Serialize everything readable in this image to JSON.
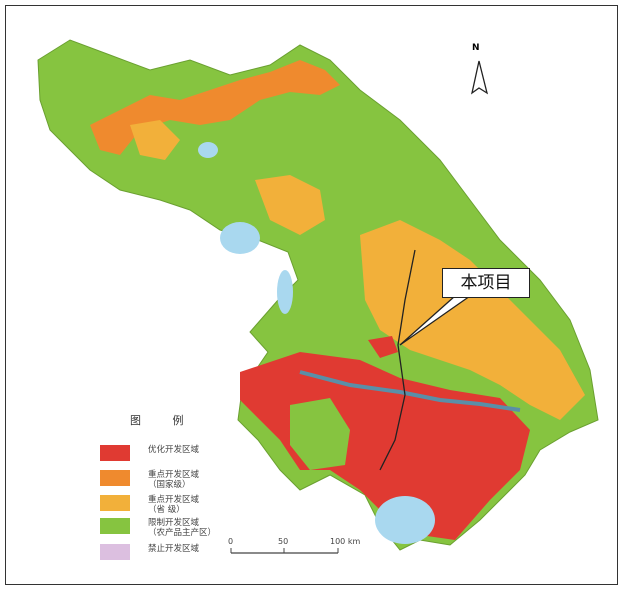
{
  "callout": {
    "label": "本项目"
  },
  "north": {
    "label": "N",
    "icon": "north-arrow-icon"
  },
  "legend": {
    "title": "图 例",
    "items": [
      {
        "label": "优化开发区域",
        "sub": "",
        "color": "#e03a32"
      },
      {
        "label": "重点开发区域",
        "sub": "（国家级）",
        "color": "#ef8a2e"
      },
      {
        "label": "重点开发区域",
        "sub": "（省 级）",
        "color": "#f2b03a"
      },
      {
        "label": "限制开发区域",
        "sub": "（农产品主产区）",
        "color": "#86c440"
      },
      {
        "label": "禁止开发区域",
        "sub": "",
        "color": "#dcbfe0"
      }
    ]
  },
  "scale": {
    "ticks": [
      "0",
      "50",
      "100 km"
    ]
  },
  "colors": {
    "water": "#a9d8ef",
    "river": "#5a8fa8"
  }
}
